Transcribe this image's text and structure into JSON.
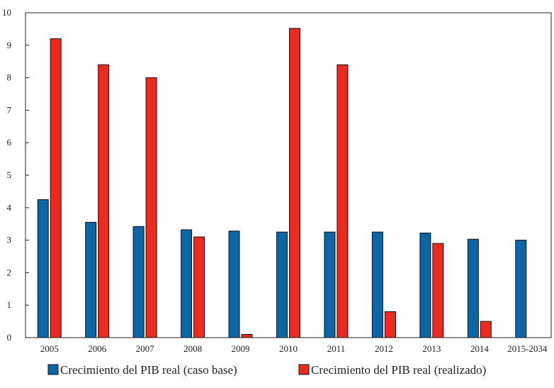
{
  "chart_data": {
    "type": "bar",
    "title": "",
    "xlabel": "",
    "ylabel": "",
    "ylim": [
      0,
      10
    ],
    "yticks": [
      0,
      1,
      2,
      3,
      4,
      5,
      6,
      7,
      8,
      9,
      10
    ],
    "grid": false,
    "legend_position": "bottom",
    "categories": [
      "2005",
      "2006",
      "2007",
      "2008",
      "2009",
      "2010",
      "2011",
      "2012",
      "2013",
      "2014",
      "2015-2034"
    ],
    "series": [
      {
        "name": "Crecimiento del PIB real (caso base)",
        "color": "#0b66a6",
        "values": [
          4.25,
          3.55,
          3.42,
          3.32,
          3.28,
          3.25,
          3.25,
          3.25,
          3.22,
          3.03,
          3.0
        ]
      },
      {
        "name": "Crecimiento del PIB real (realizado)",
        "color": "#ee2a1f",
        "values": [
          9.2,
          8.4,
          8.0,
          3.1,
          0.1,
          9.52,
          8.4,
          0.8,
          2.9,
          0.5,
          null
        ]
      }
    ]
  }
}
